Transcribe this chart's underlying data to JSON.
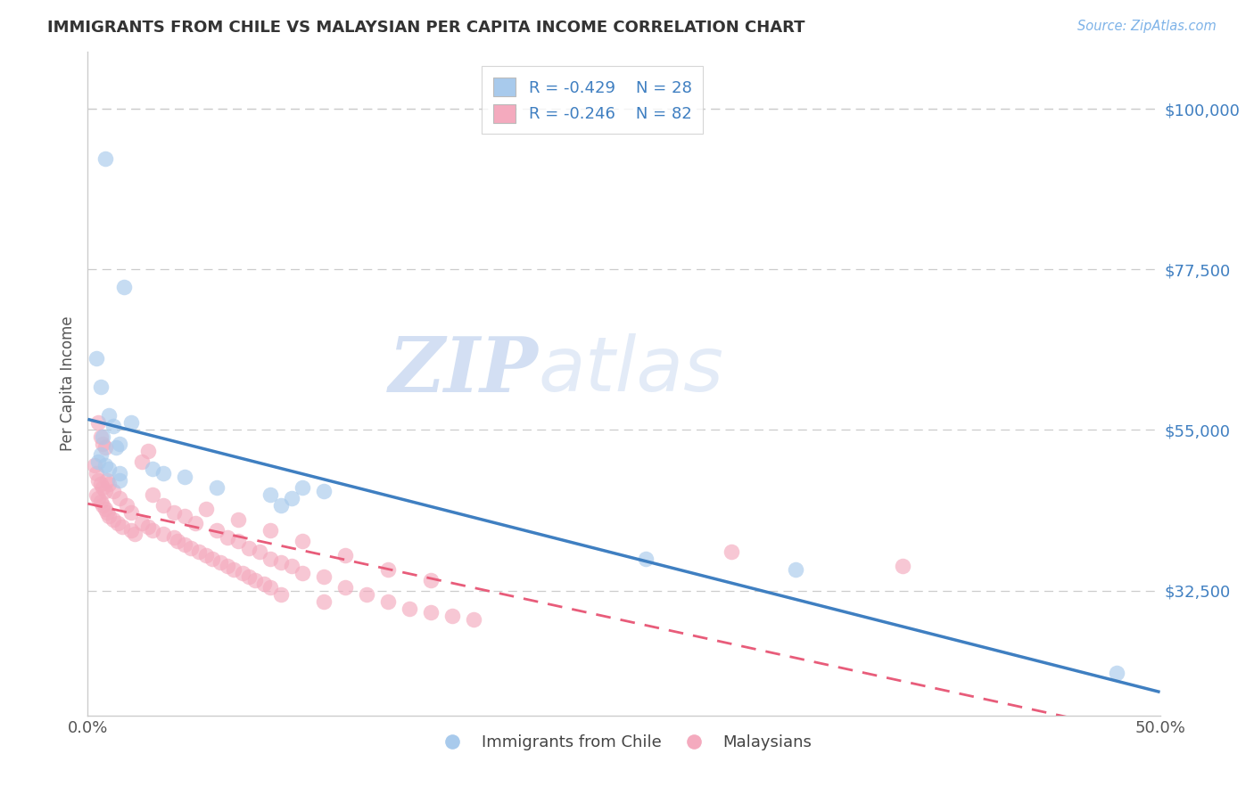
{
  "title": "IMMIGRANTS FROM CHILE VS MALAYSIAN PER CAPITA INCOME CORRELATION CHART",
  "source": "Source: ZipAtlas.com",
  "ylabel": "Per Capita Income",
  "xlim": [
    0.0,
    0.5
  ],
  "ylim": [
    15000,
    108000
  ],
  "yticks": [
    32500,
    55000,
    77500,
    100000
  ],
  "ytick_labels": [
    "$32,500",
    "$55,000",
    "$77,500",
    "$100,000"
  ],
  "xtick_vals": [
    0.0,
    0.5
  ],
  "xtick_labels": [
    "0.0%",
    "50.0%"
  ],
  "legend_text_blue": "R = -0.429    N = 28",
  "legend_text_pink": "R = -0.246    N = 82",
  "legend_label_blue": "Immigrants from Chile",
  "legend_label_pink": "Malaysians",
  "color_blue": "#A8CAEC",
  "color_pink": "#F4AABE",
  "line_color_blue": "#3F7FC1",
  "line_color_pink": "#E85C7A",
  "watermark_zip": "ZIP",
  "watermark_atlas": "atlas",
  "blue_points_x": [
    0.008,
    0.017,
    0.004,
    0.006,
    0.01,
    0.012,
    0.007,
    0.013,
    0.008,
    0.005,
    0.006,
    0.01,
    0.015,
    0.02,
    0.015,
    0.03,
    0.035,
    0.045,
    0.015,
    0.06,
    0.085,
    0.095,
    0.1,
    0.09,
    0.11,
    0.33,
    0.26,
    0.48
  ],
  "blue_points_y": [
    93000,
    75000,
    65000,
    61000,
    57000,
    55500,
    54000,
    52500,
    50000,
    50500,
    51500,
    49500,
    49000,
    56000,
    48000,
    49500,
    49000,
    48500,
    53000,
    47000,
    46000,
    45500,
    47000,
    44500,
    46500,
    35500,
    37000,
    21000
  ],
  "pink_points_x": [
    0.003,
    0.004,
    0.005,
    0.006,
    0.007,
    0.008,
    0.004,
    0.005,
    0.006,
    0.007,
    0.008,
    0.009,
    0.01,
    0.012,
    0.014,
    0.016,
    0.02,
    0.022,
    0.025,
    0.028,
    0.005,
    0.006,
    0.007,
    0.008,
    0.009,
    0.01,
    0.012,
    0.015,
    0.018,
    0.02,
    0.025,
    0.028,
    0.03,
    0.035,
    0.04,
    0.042,
    0.045,
    0.048,
    0.052,
    0.055,
    0.058,
    0.062,
    0.065,
    0.068,
    0.072,
    0.075,
    0.078,
    0.082,
    0.085,
    0.03,
    0.035,
    0.04,
    0.045,
    0.05,
    0.06,
    0.065,
    0.07,
    0.075,
    0.08,
    0.085,
    0.09,
    0.095,
    0.1,
    0.11,
    0.12,
    0.13,
    0.14,
    0.15,
    0.16,
    0.17,
    0.18,
    0.055,
    0.07,
    0.085,
    0.1,
    0.12,
    0.14,
    0.16,
    0.09,
    0.11,
    0.3,
    0.38
  ],
  "pink_points_y": [
    50000,
    49000,
    48000,
    47500,
    47000,
    46500,
    46000,
    45500,
    45000,
    44500,
    44000,
    43500,
    43000,
    42500,
    42000,
    41500,
    41000,
    40500,
    50500,
    52000,
    56000,
    54000,
    53000,
    52500,
    48000,
    47500,
    46500,
    45500,
    44500,
    43500,
    42000,
    41500,
    41000,
    40500,
    40000,
    39500,
    39000,
    38500,
    38000,
    37500,
    37000,
    36500,
    36000,
    35500,
    35000,
    34500,
    34000,
    33500,
    33000,
    46000,
    44500,
    43500,
    43000,
    42000,
    41000,
    40000,
    39500,
    38500,
    38000,
    37000,
    36500,
    36000,
    35000,
    34500,
    33000,
    32000,
    31000,
    30000,
    29500,
    29000,
    28500,
    44000,
    42500,
    41000,
    39500,
    37500,
    35500,
    34000,
    32000,
    31000,
    38000,
    36000
  ]
}
